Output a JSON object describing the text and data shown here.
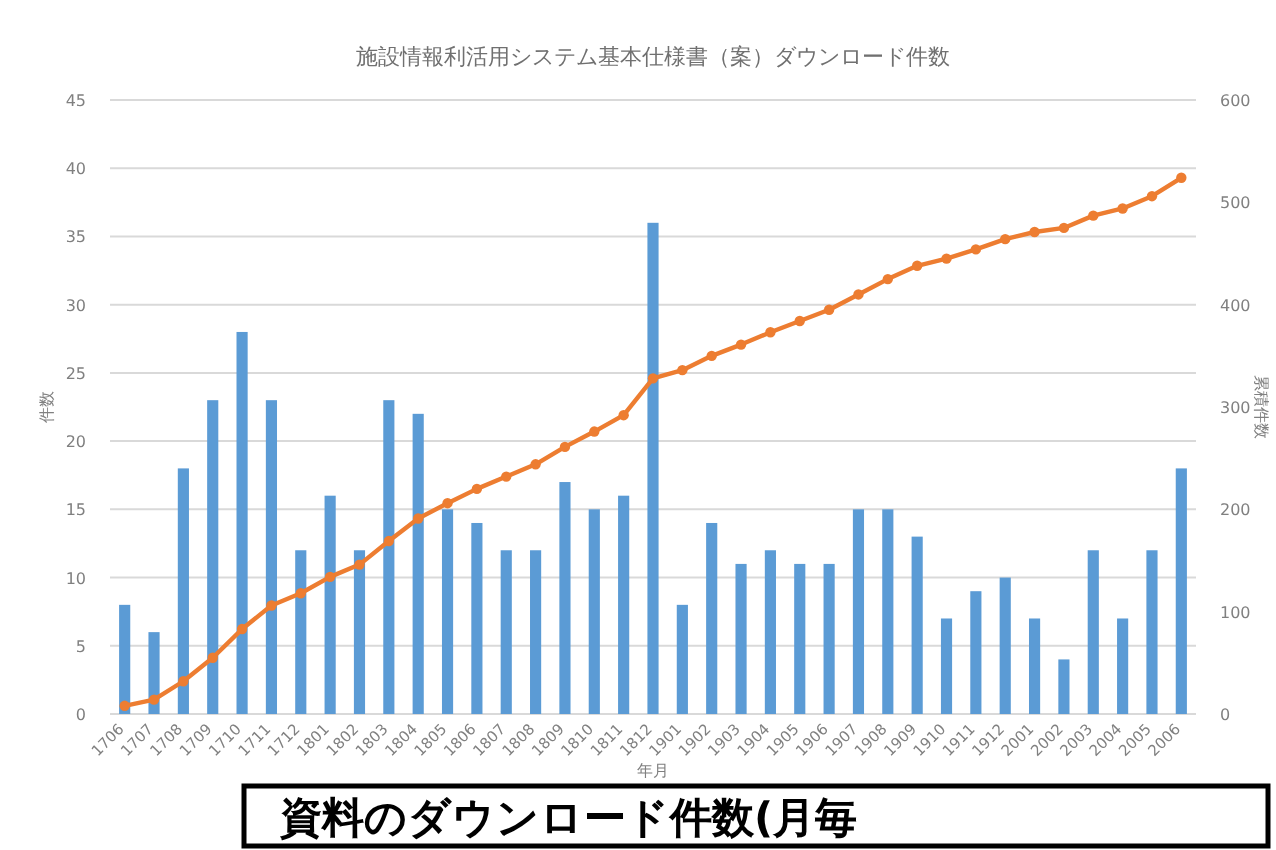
{
  "chart_data": {
    "type": "bar",
    "title": "施設情報利活用システム基本仕様書（案）ダウンロード件数",
    "xlabel": "年月",
    "ylabel": "件数",
    "y2label": "累積件数",
    "categories": [
      "1706",
      "1707",
      "1708",
      "1709",
      "1710",
      "1711",
      "1712",
      "1801",
      "1802",
      "1803",
      "1804",
      "1805",
      "1806",
      "1807",
      "1808",
      "1809",
      "1810",
      "1811",
      "1812",
      "1901",
      "1902",
      "1903",
      "1904",
      "1905",
      "1906",
      "1907",
      "1908",
      "1909",
      "1910",
      "1911",
      "1912",
      "2001",
      "2002",
      "2003",
      "2004",
      "2005",
      "2006"
    ],
    "series": [
      {
        "color": "#5b9bd5",
        "values": [
          8,
          6,
          18,
          23,
          28,
          23,
          12,
          16,
          12,
          23,
          22,
          15,
          14,
          12,
          12,
          17,
          15,
          16,
          36,
          8,
          14,
          11,
          12,
          11,
          11,
          15,
          15,
          13,
          7,
          9,
          10,
          7,
          4,
          12,
          7,
          12,
          18
        ]
      },
      {
        "type": "line",
        "axis": "y2",
        "color": "#ed7d31",
        "values": [
          8,
          14,
          32,
          55,
          83,
          106,
          118,
          134,
          146,
          169,
          191,
          206,
          220,
          232,
          244,
          261,
          276,
          292,
          328,
          336,
          350,
          361,
          373,
          384,
          395,
          410,
          425,
          438,
          445,
          454,
          464,
          471,
          475,
          487,
          494,
          506,
          524
        ]
      }
    ],
    "ylim": [
      0,
      45
    ],
    "yticks": [
      0,
      5,
      10,
      15,
      20,
      25,
      30,
      35,
      40,
      45
    ],
    "y2lim": [
      0,
      600
    ],
    "y2ticks": [
      0,
      100,
      200,
      300,
      400,
      500,
      600
    ],
    "grid": "y",
    "marker": "circle",
    "line_style": "solid",
    "annotations": [
      "資料のダウンロード件数(月毎"
    ]
  }
}
